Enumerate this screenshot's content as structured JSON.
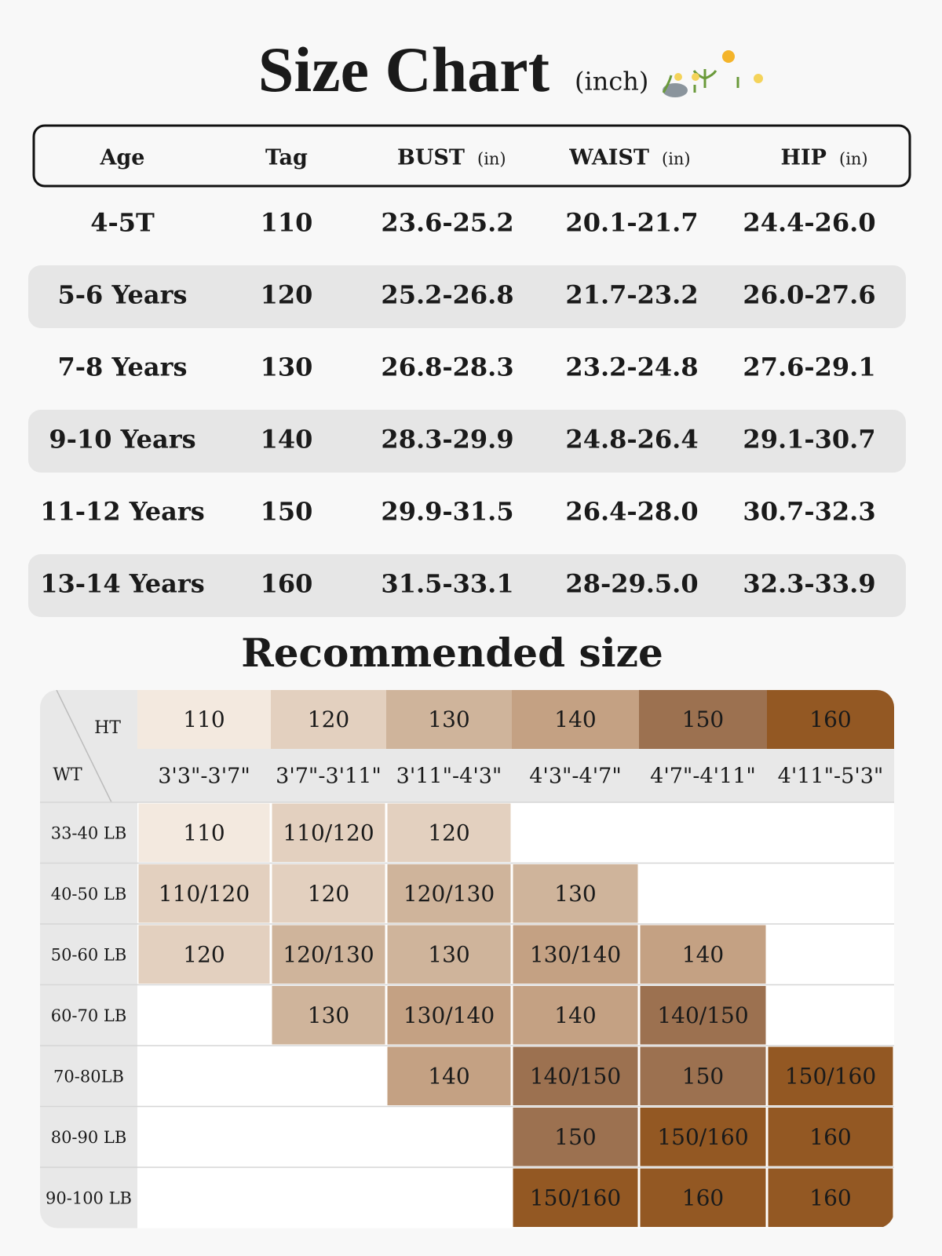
{
  "header": {
    "title": "Size Chart",
    "unit": "(inch)"
  },
  "size_table": {
    "columns": [
      {
        "label": "Age"
      },
      {
        "label": "Tag"
      },
      {
        "label": "BUST",
        "unit": "(in)"
      },
      {
        "label": "WAIST",
        "unit": "(in)"
      },
      {
        "label": "HIP",
        "unit": "(in)"
      }
    ],
    "rows": [
      [
        "4-5T",
        "110",
        "23.6-25.2",
        "20.1-21.7",
        "24.4-26.0"
      ],
      [
        "5-6 Years",
        "120",
        "25.2-26.8",
        "21.7-23.2",
        "26.0-27.6"
      ],
      [
        "7-8 Years",
        "130",
        "26.8-28.3",
        "23.2-24.8",
        "27.6-29.1"
      ],
      [
        "9-10 Years",
        "140",
        "28.3-29.9",
        "24.8-26.4",
        "29.1-30.7"
      ],
      [
        "11-12 Years",
        "150",
        "29.9-31.5",
        "26.4-28.0",
        "30.7-32.3"
      ],
      [
        "13-14 Years",
        "160",
        "31.5-33.1",
        "28-29.5.0",
        "32.3-33.9"
      ]
    ]
  },
  "recommended": {
    "title": "Recommended size",
    "ht_label": "HT",
    "wt_label": "WT",
    "heights": [
      {
        "tag": "110",
        "range": "3'3\"-3'7\"",
        "color": "#f3e9df"
      },
      {
        "tag": "120",
        "range": "3'7\"-3'11\"",
        "color": "#e3d0bf"
      },
      {
        "tag": "130",
        "range": "3'11\"-4'3\"",
        "color": "#cfb49b"
      },
      {
        "tag": "140",
        "range": "4'3\"-4'7\"",
        "color": "#c4a183"
      },
      {
        "tag": "150",
        "range": "4'7\"-4'11\"",
        "color": "#9c7150"
      },
      {
        "tag": "160",
        "range": "4'11\"-5'3\"",
        "color": "#935823"
      }
    ],
    "rows": [
      {
        "weight": "33-40 LB",
        "cells": [
          "110",
          "110/120",
          "120",
          null,
          null,
          null
        ]
      },
      {
        "weight": "40-50 LB",
        "cells": [
          "110/120",
          "120",
          "120/130",
          "130",
          null,
          null
        ]
      },
      {
        "weight": "50-60 LB",
        "cells": [
          "120",
          "120/130",
          "130",
          "130/140",
          "140",
          null
        ]
      },
      {
        "weight": "60-70 LB",
        "cells": [
          null,
          "130",
          "130/140",
          "140",
          "140/150",
          null
        ]
      },
      {
        "weight": "70-80LB",
        "cells": [
          null,
          null,
          "140",
          "140/150",
          "150",
          "150/160"
        ]
      },
      {
        "weight": "80-90 LB",
        "cells": [
          null,
          null,
          null,
          "150",
          "150/160",
          "160"
        ]
      },
      {
        "weight": "90-100 LB",
        "cells": [
          null,
          null,
          null,
          "150/160",
          "160",
          "160"
        ]
      }
    ]
  }
}
